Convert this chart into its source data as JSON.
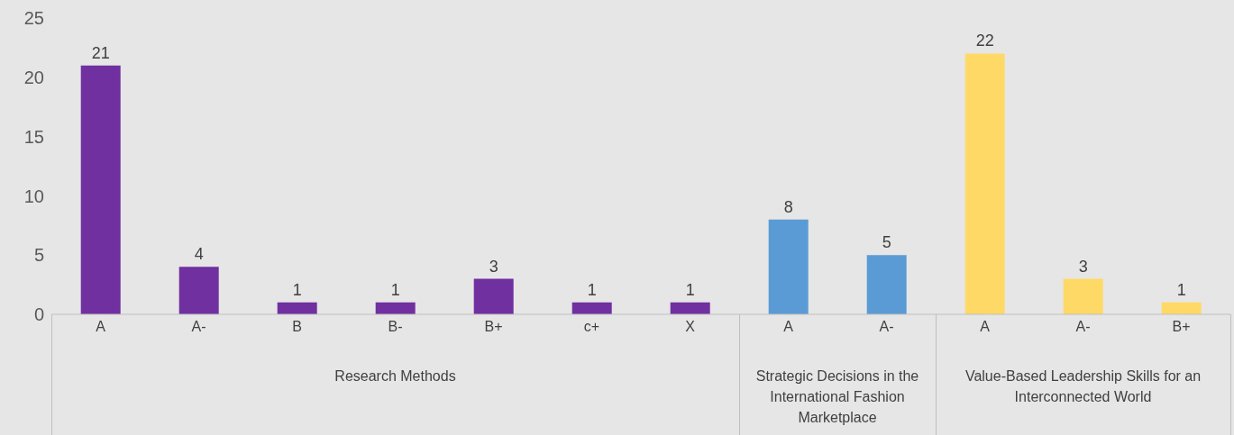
{
  "chart_data": {
    "type": "bar",
    "categories": [
      "A",
      "A-",
      "B",
      "B-",
      "B+",
      "c+",
      "X",
      "A",
      "A-",
      "A",
      "A-",
      "B+"
    ],
    "values": [
      21,
      4,
      1,
      1,
      3,
      1,
      1,
      8,
      5,
      22,
      3,
      1
    ],
    "colors": [
      "#7030a0",
      "#7030a0",
      "#7030a0",
      "#7030a0",
      "#7030a0",
      "#7030a0",
      "#7030a0",
      "#5b9bd5",
      "#5b9bd5",
      "#ffd966",
      "#ffd966",
      "#ffd966"
    ],
    "annotations": [
      "Research Methods",
      "Strategic Decisions in the International Fashion Marketplace",
      "Value-Based Leadership Skills for an Interconnected World"
    ],
    "ylim": [
      0,
      25
    ],
    "yticks": [
      0,
      5,
      10,
      15,
      20,
      25
    ],
    "data_labels": true
  }
}
